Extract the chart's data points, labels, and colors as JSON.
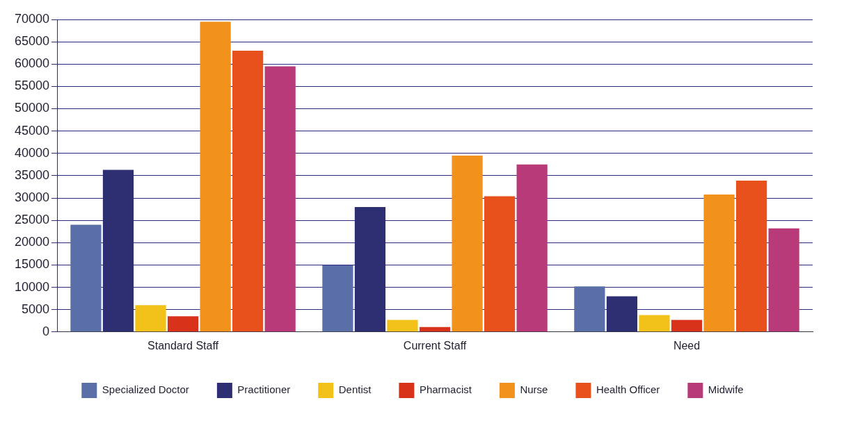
{
  "chart_data": {
    "type": "bar",
    "categories": [
      "Standard Staff",
      "Current Staff",
      "Need"
    ],
    "series": [
      {
        "name": "Specialized Doctor",
        "color": "#5a6ea8",
        "values": [
          24000,
          14900,
          10200
        ]
      },
      {
        "name": "Practitioner",
        "color": "#2e2f72",
        "values": [
          36300,
          28000,
          8000
        ]
      },
      {
        "name": "Dentist",
        "color": "#f2c21a",
        "values": [
          6000,
          2700,
          3800
        ]
      },
      {
        "name": "Pharmacist",
        "color": "#d8321a",
        "values": [
          3500,
          1100,
          2700
        ]
      },
      {
        "name": "Nurse",
        "color": "#f0921c",
        "values": [
          69500,
          39500,
          30800
        ]
      },
      {
        "name": "Health Officer",
        "color": "#e8501c",
        "values": [
          63000,
          30400,
          33900
        ]
      },
      {
        "name": "Midwife",
        "color": "#b83a78",
        "values": [
          59500,
          37500,
          23200
        ]
      }
    ],
    "ylim": [
      0,
      70000
    ],
    "yticks": [
      0,
      5000,
      10000,
      15000,
      20000,
      25000,
      30000,
      35000,
      40000,
      45000,
      50000,
      55000,
      60000,
      65000,
      70000
    ],
    "grid": "y",
    "legend": "bottom"
  }
}
